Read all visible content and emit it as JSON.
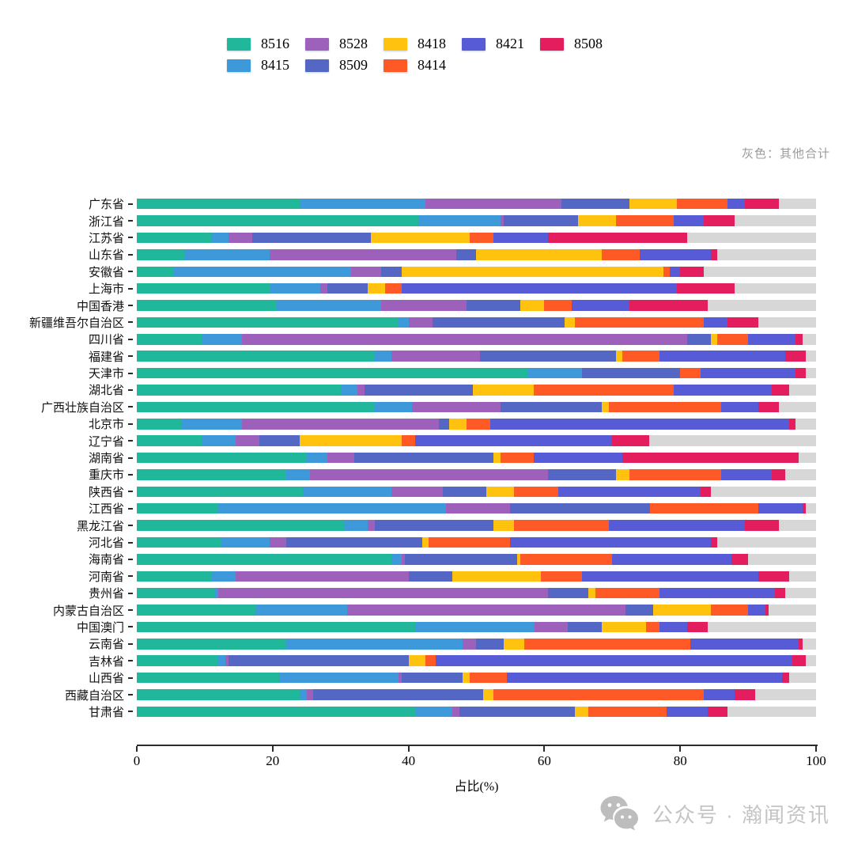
{
  "note": "灰色：其他合计",
  "footer": {
    "brand_text": "公众号 · 瀚闻资讯",
    "icon": "wechat-icon"
  },
  "chart_data": {
    "type": "bar",
    "orientation": "horizontal",
    "stacked": true,
    "units": "percent",
    "note": "灰色：其他合计",
    "xlabel": "占比(%)",
    "xlim": [
      0,
      100
    ],
    "xticks": [
      0,
      20,
      40,
      60,
      80,
      100
    ],
    "grid": false,
    "legend_position": "top",
    "legend_rows": [
      [
        "8516",
        "8528",
        "8418",
        "8421",
        "8508"
      ],
      [
        "8415",
        "8509",
        "8414"
      ]
    ],
    "colors": {
      "8516": "#21B79B",
      "8415": "#3D99D9",
      "8528": "#9D61BC",
      "8509": "#5567C4",
      "8418": "#FFC20E",
      "8414": "#FF5926",
      "8421": "#575CD6",
      "8508": "#E41D5E",
      "其他": "#D7D7D7"
    },
    "categories": [
      "广东省",
      "浙江省",
      "江苏省",
      "山东省",
      "安徽省",
      "上海市",
      "中国香港",
      "新疆维吾尔自治区",
      "四川省",
      "福建省",
      "天津市",
      "湖北省",
      "广西壮族自治区",
      "北京市",
      "辽宁省",
      "湖南省",
      "重庆市",
      "陕西省",
      "江西省",
      "黑龙江省",
      "河北省",
      "海南省",
      "河南省",
      "贵州省",
      "内蒙古自治区",
      "中国澳门",
      "云南省",
      "吉林省",
      "山西省",
      "西藏自治区",
      "甘肃省"
    ],
    "series": [
      {
        "name": "8516",
        "color": "#21B79B",
        "values": [
          24,
          41.5,
          11,
          7,
          5.5,
          19.5,
          20.5,
          38.5,
          9.5,
          35,
          57.5,
          30,
          35,
          6.5,
          9.5,
          25,
          22,
          24.5,
          12,
          30.5,
          12.5,
          37.5,
          11,
          11.5,
          17.5,
          41,
          22,
          12,
          21,
          24,
          41
        ]
      },
      {
        "name": "8415",
        "color": "#3D99D9",
        "values": [
          18.5,
          12,
          2.5,
          12.5,
          26,
          7.5,
          15.5,
          1.5,
          6,
          2.5,
          8,
          2.5,
          5.5,
          9,
          5,
          3,
          3.5,
          13,
          33.5,
          3.5,
          7,
          1.5,
          3.5,
          0.5,
          13.5,
          17.5,
          26,
          1,
          17.5,
          1,
          5.5
        ]
      },
      {
        "name": "8528",
        "color": "#9D61BC",
        "values": [
          20,
          0.5,
          3.5,
          27.5,
          4.5,
          1,
          12.5,
          3.5,
          65.5,
          13,
          0,
          1,
          13,
          29,
          3.5,
          4,
          35,
          7.5,
          9.5,
          1,
          2.5,
          0.5,
          25.5,
          48.5,
          41,
          5,
          2,
          0.5,
          0.5,
          1,
          1
        ]
      },
      {
        "name": "8509",
        "color": "#5567C4",
        "values": [
          10,
          11,
          17.5,
          3,
          3,
          6,
          8,
          19.5,
          3.5,
          20,
          14.5,
          16,
          15,
          1.5,
          6,
          20.5,
          10,
          6.5,
          20.5,
          17.5,
          20,
          16.5,
          6.5,
          6,
          4,
          5,
          4,
          26.5,
          9,
          25,
          17
        ]
      },
      {
        "name": "8418",
        "color": "#FFC20E",
        "values": [
          7,
          5.5,
          14.5,
          18.5,
          38.5,
          2.5,
          3.5,
          1.5,
          1,
          1,
          0,
          9,
          1,
          2.5,
          15,
          1,
          2,
          4,
          0,
          3,
          1,
          0.5,
          13,
          1,
          8.5,
          6.5,
          3,
          2.5,
          1,
          1.5,
          2
        ]
      },
      {
        "name": "8414",
        "color": "#FF5926",
        "values": [
          7.5,
          8.5,
          3.5,
          5.5,
          1,
          2.5,
          4,
          19,
          4.5,
          5.5,
          3,
          20.5,
          16.5,
          3.5,
          2,
          5,
          13.5,
          6.5,
          16,
          14,
          12,
          13.5,
          6,
          9.5,
          5.5,
          2,
          24.5,
          1.5,
          5.5,
          31,
          11.5
        ]
      },
      {
        "name": "8421",
        "color": "#575CD6",
        "values": [
          2.5,
          4.5,
          8,
          10.5,
          1.5,
          40.5,
          8.5,
          3.5,
          7,
          18.5,
          14,
          14.5,
          5.5,
          44,
          29,
          13,
          7.5,
          21,
          6.5,
          20,
          29.5,
          17.5,
          26,
          17,
          2.5,
          4,
          16,
          52.5,
          40.5,
          4.5,
          6
        ]
      },
      {
        "name": "8508",
        "color": "#E41D5E",
        "values": [
          5,
          4.5,
          20.5,
          1,
          3.5,
          8.5,
          11.5,
          4.5,
          1,
          3,
          1.5,
          2.5,
          3,
          1,
          5.5,
          26,
          2,
          1.5,
          0.5,
          5,
          1,
          2.5,
          4.5,
          1.5,
          0.5,
          3,
          0.5,
          2,
          1,
          3,
          3
        ]
      },
      {
        "name": "其他",
        "color": "#D7D7D7",
        "values": [
          5.5,
          12,
          19,
          14.5,
          16.5,
          12,
          16,
          8.5,
          2,
          1.5,
          1.5,
          4,
          5.5,
          3,
          24.5,
          2.5,
          4.5,
          15.5,
          1.5,
          5.5,
          14.5,
          10,
          4,
          4.5,
          7,
          16,
          2,
          1.5,
          4,
          9,
          13
        ]
      }
    ]
  }
}
